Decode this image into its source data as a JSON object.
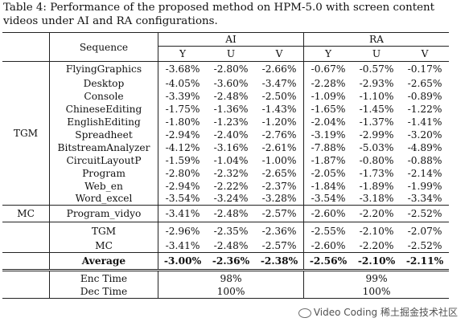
{
  "caption": "Table 4: Performance of the proposed method on HPM-5.0 with screen content videos under AI and RA configurations.",
  "header": {
    "sequence": "Sequence",
    "ai": "AI",
    "ra": "RA",
    "cols": [
      "Y",
      "U",
      "V",
      "Y",
      "U",
      "V"
    ]
  },
  "groups": {
    "tgm_label": "TGM",
    "mc_label": "MC"
  },
  "tgm_rows": [
    {
      "name": "FlyingGraphics",
      "vals": [
        "-3.68%",
        "-2.80%",
        "-2.66%",
        "-0.67%",
        "-0.57%",
        "-0.17%"
      ]
    },
    {
      "name": "Desktop",
      "vals": [
        "-4.05%",
        "-3.60%",
        "-3.47%",
        "-2.28%",
        "-2.93%",
        "-2.65%"
      ]
    },
    {
      "name": "Console",
      "vals": [
        "-3.39%",
        "-2.48%",
        "-2.50%",
        "-1.09%",
        "-1.10%",
        "-0.89%"
      ]
    },
    {
      "name": "ChineseEditing",
      "vals": [
        "-1.75%",
        "-1.36%",
        "-1.43%",
        "-1.65%",
        "-1.45%",
        "-1.22%"
      ]
    },
    {
      "name": "EnglishEditing",
      "vals": [
        "-1.80%",
        "-1.23%",
        "-1.20%",
        "-2.04%",
        "-1.37%",
        "-1.41%"
      ]
    },
    {
      "name": "Spreadheet",
      "vals": [
        "-2.94%",
        "-2.40%",
        "-2.76%",
        "-3.19%",
        "-2.99%",
        "-3.20%"
      ]
    },
    {
      "name": "BitstreamAnalyzer",
      "vals": [
        "-4.12%",
        "-3.16%",
        "-2.61%",
        "-7.88%",
        "-5.03%",
        "-4.89%"
      ]
    },
    {
      "name": "CircuitLayoutP",
      "vals": [
        "-1.59%",
        "-1.04%",
        "-1.00%",
        "-1.87%",
        "-0.80%",
        "-0.88%"
      ]
    },
    {
      "name": "Program",
      "vals": [
        "-2.80%",
        "-2.32%",
        "-2.65%",
        "-2.05%",
        "-1.73%",
        "-2.14%"
      ]
    },
    {
      "name": "Web_en",
      "vals": [
        "-2.94%",
        "-2.22%",
        "-2.37%",
        "-1.84%",
        "-1.89%",
        "-1.99%"
      ]
    },
    {
      "name": "Word_excel",
      "vals": [
        "-3.54%",
        "-3.24%",
        "-3.28%",
        "-3.54%",
        "-3.18%",
        "-3.34%"
      ]
    }
  ],
  "mc_row": {
    "name": "Program_vidyo",
    "vals": [
      "-3.41%",
      "-2.48%",
      "-2.57%",
      "-2.60%",
      "-2.20%",
      "-2.52%"
    ]
  },
  "summary_rows": [
    {
      "name": "TGM",
      "vals": [
        "-2.96%",
        "-2.35%",
        "-2.36%",
        "-2.55%",
        "-2.10%",
        "-2.07%"
      ]
    },
    {
      "name": "MC",
      "vals": [
        "-3.41%",
        "-2.48%",
        "-2.57%",
        "-2.60%",
        "-2.20%",
        "-2.52%"
      ]
    }
  ],
  "average": {
    "name": "Average",
    "vals": [
      "-3.00%",
      "-2.36%",
      "-2.38%",
      "-2.56%",
      "-2.10%",
      "-2.11%"
    ]
  },
  "time_rows": [
    {
      "name": "Enc Time",
      "ai": "98%",
      "ra": "99%"
    },
    {
      "name": "Dec Time",
      "ai": "100%",
      "ra": "100%"
    }
  ],
  "watermark": "Video Coding 稀土掘金技术社区"
}
